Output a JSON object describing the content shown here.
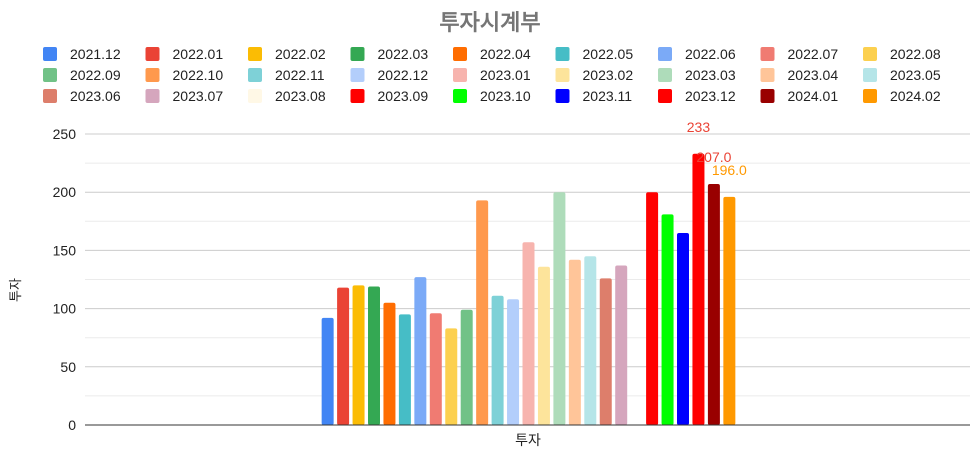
{
  "chart_data": {
    "type": "bar",
    "title": "투자시계부",
    "xlabel": "투자",
    "ylabel": "투자",
    "categories": [
      "투자"
    ],
    "ylim": [
      0,
      250
    ],
    "yticks": [
      0,
      50,
      100,
      150,
      200,
      250
    ],
    "grid": true,
    "legend_position": "top",
    "series": [
      {
        "name": "2021.12",
        "color": "#4285F4",
        "values": [
          92
        ]
      },
      {
        "name": "2022.01",
        "color": "#EA4335",
        "values": [
          118
        ]
      },
      {
        "name": "2022.02",
        "color": "#FBBC04",
        "values": [
          120
        ]
      },
      {
        "name": "2022.03",
        "color": "#34A853",
        "values": [
          119
        ]
      },
      {
        "name": "2022.04",
        "color": "#FF6D01",
        "values": [
          105
        ]
      },
      {
        "name": "2022.05",
        "color": "#46BDC6",
        "values": [
          95
        ]
      },
      {
        "name": "2022.06",
        "color": "#7BAAF7",
        "values": [
          127
        ]
      },
      {
        "name": "2022.07",
        "color": "#F07B72",
        "values": [
          96
        ]
      },
      {
        "name": "2022.08",
        "color": "#FCD04F",
        "values": [
          83
        ]
      },
      {
        "name": "2022.09",
        "color": "#71C287",
        "values": [
          99
        ]
      },
      {
        "name": "2022.10",
        "color": "#FF994D",
        "values": [
          193
        ]
      },
      {
        "name": "2022.11",
        "color": "#7ED1D7",
        "values": [
          111
        ]
      },
      {
        "name": "2022.12",
        "color": "#B3CEFB",
        "values": [
          108
        ]
      },
      {
        "name": "2023.01",
        "color": "#F7B4AE",
        "values": [
          157
        ]
      },
      {
        "name": "2023.02",
        "color": "#FDE49B",
        "values": [
          136
        ]
      },
      {
        "name": "2023.03",
        "color": "#AEDCBA",
        "values": [
          200
        ]
      },
      {
        "name": "2023.04",
        "color": "#FFC599",
        "values": [
          142
        ]
      },
      {
        "name": "2023.05",
        "color": "#B5E5E8",
        "values": [
          145
        ]
      },
      {
        "name": "2023.06",
        "color": "#DD7E6B",
        "values": [
          126
        ]
      },
      {
        "name": "2023.07",
        "color": "#D5A6BD",
        "values": [
          137
        ]
      },
      {
        "name": "2023.08",
        "color": "#FFF8E6",
        "values": [
          0
        ]
      },
      {
        "name": "2023.09",
        "color": "#FF0000",
        "values": [
          200
        ]
      },
      {
        "name": "2023.10",
        "color": "#00FF00",
        "values": [
          181
        ]
      },
      {
        "name": "2023.11",
        "color": "#0000FF",
        "values": [
          165
        ]
      },
      {
        "name": "2023.12",
        "color": "#FF0000",
        "values": [
          233
        ],
        "data_label": "233",
        "label_color": "#EA4335"
      },
      {
        "name": "2024.01",
        "color": "#990000",
        "values": [
          207
        ],
        "data_label": "207.0",
        "label_color": "#EA4335"
      },
      {
        "name": "2024.02",
        "color": "#FF9900",
        "values": [
          196
        ],
        "data_label": "196.0",
        "label_color": "#FF9900"
      }
    ]
  }
}
